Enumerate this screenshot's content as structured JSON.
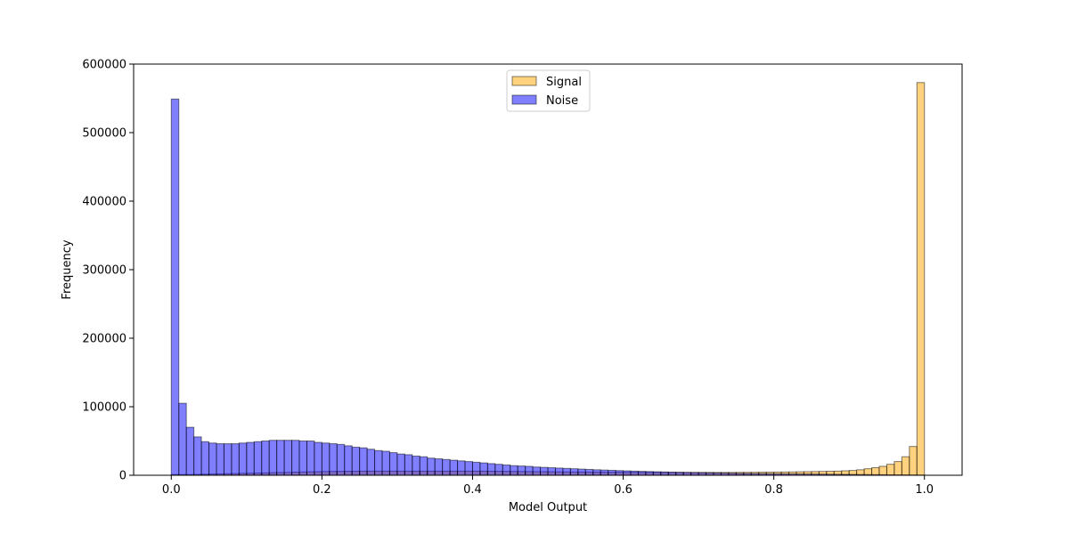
{
  "chart_data": {
    "type": "bar",
    "title": "",
    "xlabel": "Model Output",
    "ylabel": "Frequency",
    "xlim": [
      -0.05,
      1.05
    ],
    "ylim": [
      0,
      600000
    ],
    "xticks": [
      0.0,
      0.2,
      0.4,
      0.6,
      0.8,
      1.0
    ],
    "xtick_labels": [
      "0.0",
      "0.2",
      "0.4",
      "0.6",
      "0.8",
      "1.0"
    ],
    "yticks": [
      0,
      100000,
      200000,
      300000,
      400000,
      500000,
      600000
    ],
    "ytick_labels": [
      "0",
      "100000",
      "200000",
      "300000",
      "400000",
      "500000",
      "600000"
    ],
    "bins": 100,
    "bin_range": [
      0,
      1
    ],
    "grid": false,
    "legend_position": "upper center",
    "series": [
      {
        "name": "Signal",
        "color": "#ffa500",
        "alpha": 0.5,
        "edge_color": "#000000",
        "values": [
          1000,
          1000,
          1000,
          1200,
          1500,
          1800,
          2000,
          2300,
          2500,
          2800,
          3000,
          3200,
          3500,
          3800,
          4000,
          4200,
          4500,
          4800,
          5000,
          5200,
          5500,
          5600,
          5700,
          5800,
          5900,
          6000,
          6000,
          6000,
          6000,
          6000,
          6000,
          6000,
          6000,
          6000,
          6000,
          6000,
          6000,
          6000,
          6000,
          6000,
          6000,
          6000,
          5900,
          5800,
          5700,
          5600,
          5500,
          5400,
          5300,
          5200,
          5100,
          5000,
          4900,
          4800,
          4700,
          4600,
          4500,
          4500,
          4400,
          4400,
          4300,
          4300,
          4200,
          4200,
          4200,
          4100,
          4100,
          4100,
          4100,
          4100,
          4100,
          4100,
          4100,
          4100,
          4100,
          4200,
          4200,
          4300,
          4400,
          4500,
          4600,
          4700,
          4800,
          5000,
          5200,
          5400,
          5600,
          5800,
          6000,
          6500,
          7000,
          8000,
          9500,
          11000,
          13000,
          16000,
          20000,
          27000,
          42000,
          573000
        ]
      },
      {
        "name": "Noise",
        "color": "#0000ff",
        "alpha": 0.5,
        "edge_color": "#000000",
        "values": [
          549000,
          105000,
          70000,
          56000,
          49000,
          47000,
          46000,
          46000,
          46000,
          47000,
          48000,
          49000,
          50000,
          51000,
          51000,
          51000,
          51000,
          50000,
          50000,
          48000,
          47000,
          46000,
          45000,
          43000,
          41000,
          40000,
          38000,
          36000,
          35000,
          33000,
          31000,
          30000,
          28000,
          27000,
          25000,
          24000,
          23000,
          22000,
          21000,
          20000,
          19000,
          18000,
          17000,
          16000,
          15000,
          14000,
          13500,
          13000,
          12000,
          11500,
          11000,
          10500,
          10000,
          9500,
          9000,
          8500,
          8000,
          7600,
          7200,
          6800,
          6400,
          6000,
          5700,
          5400,
          5100,
          4800,
          4500,
          4300,
          4100,
          3900,
          3700,
          3500,
          3300,
          3100,
          2900,
          2700,
          2600,
          2500,
          2400,
          2300,
          2200,
          2100,
          2000,
          1900,
          1800,
          1700,
          1600,
          1500,
          1400,
          1300,
          1200,
          1100,
          1000,
          900,
          800,
          700,
          600,
          500,
          400,
          300
        ]
      }
    ]
  }
}
